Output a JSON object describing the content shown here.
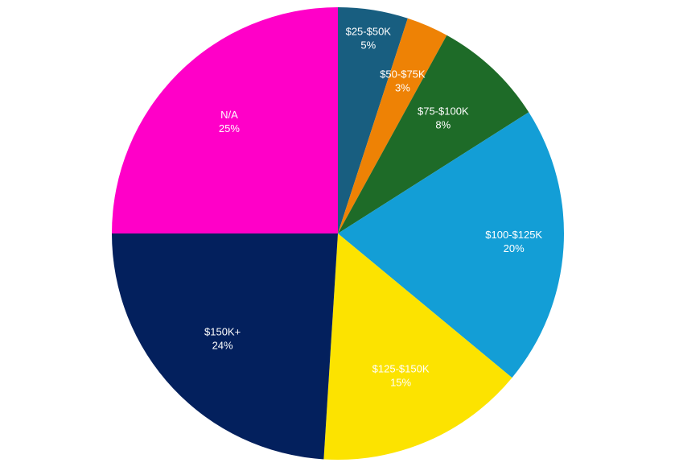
{
  "chart_data": {
    "type": "pie",
    "title": "",
    "start_angle_deg": 0,
    "direction": "clockwise",
    "slices": [
      {
        "label": "$25-$50K",
        "value": 5,
        "value_label": "5%",
        "color": "#185e80"
      },
      {
        "label": "$50-$75K",
        "value": 3,
        "value_label": "3%",
        "color": "#ee8205"
      },
      {
        "label": "$75-$100K",
        "value": 8,
        "value_label": "8%",
        "color": "#1e6b28"
      },
      {
        "label": "$100-$125K",
        "value": 20,
        "value_label": "20%",
        "color": "#139ed6"
      },
      {
        "label": "$125-$150K",
        "value": 15,
        "value_label": "15%",
        "color": "#fce300"
      },
      {
        "label": "$150K+",
        "value": 24,
        "value_label": "24%",
        "color": "#03205d"
      },
      {
        "label": "N/A",
        "value": 25,
        "value_label": "25%",
        "color": "#ff00c8"
      }
    ]
  }
}
